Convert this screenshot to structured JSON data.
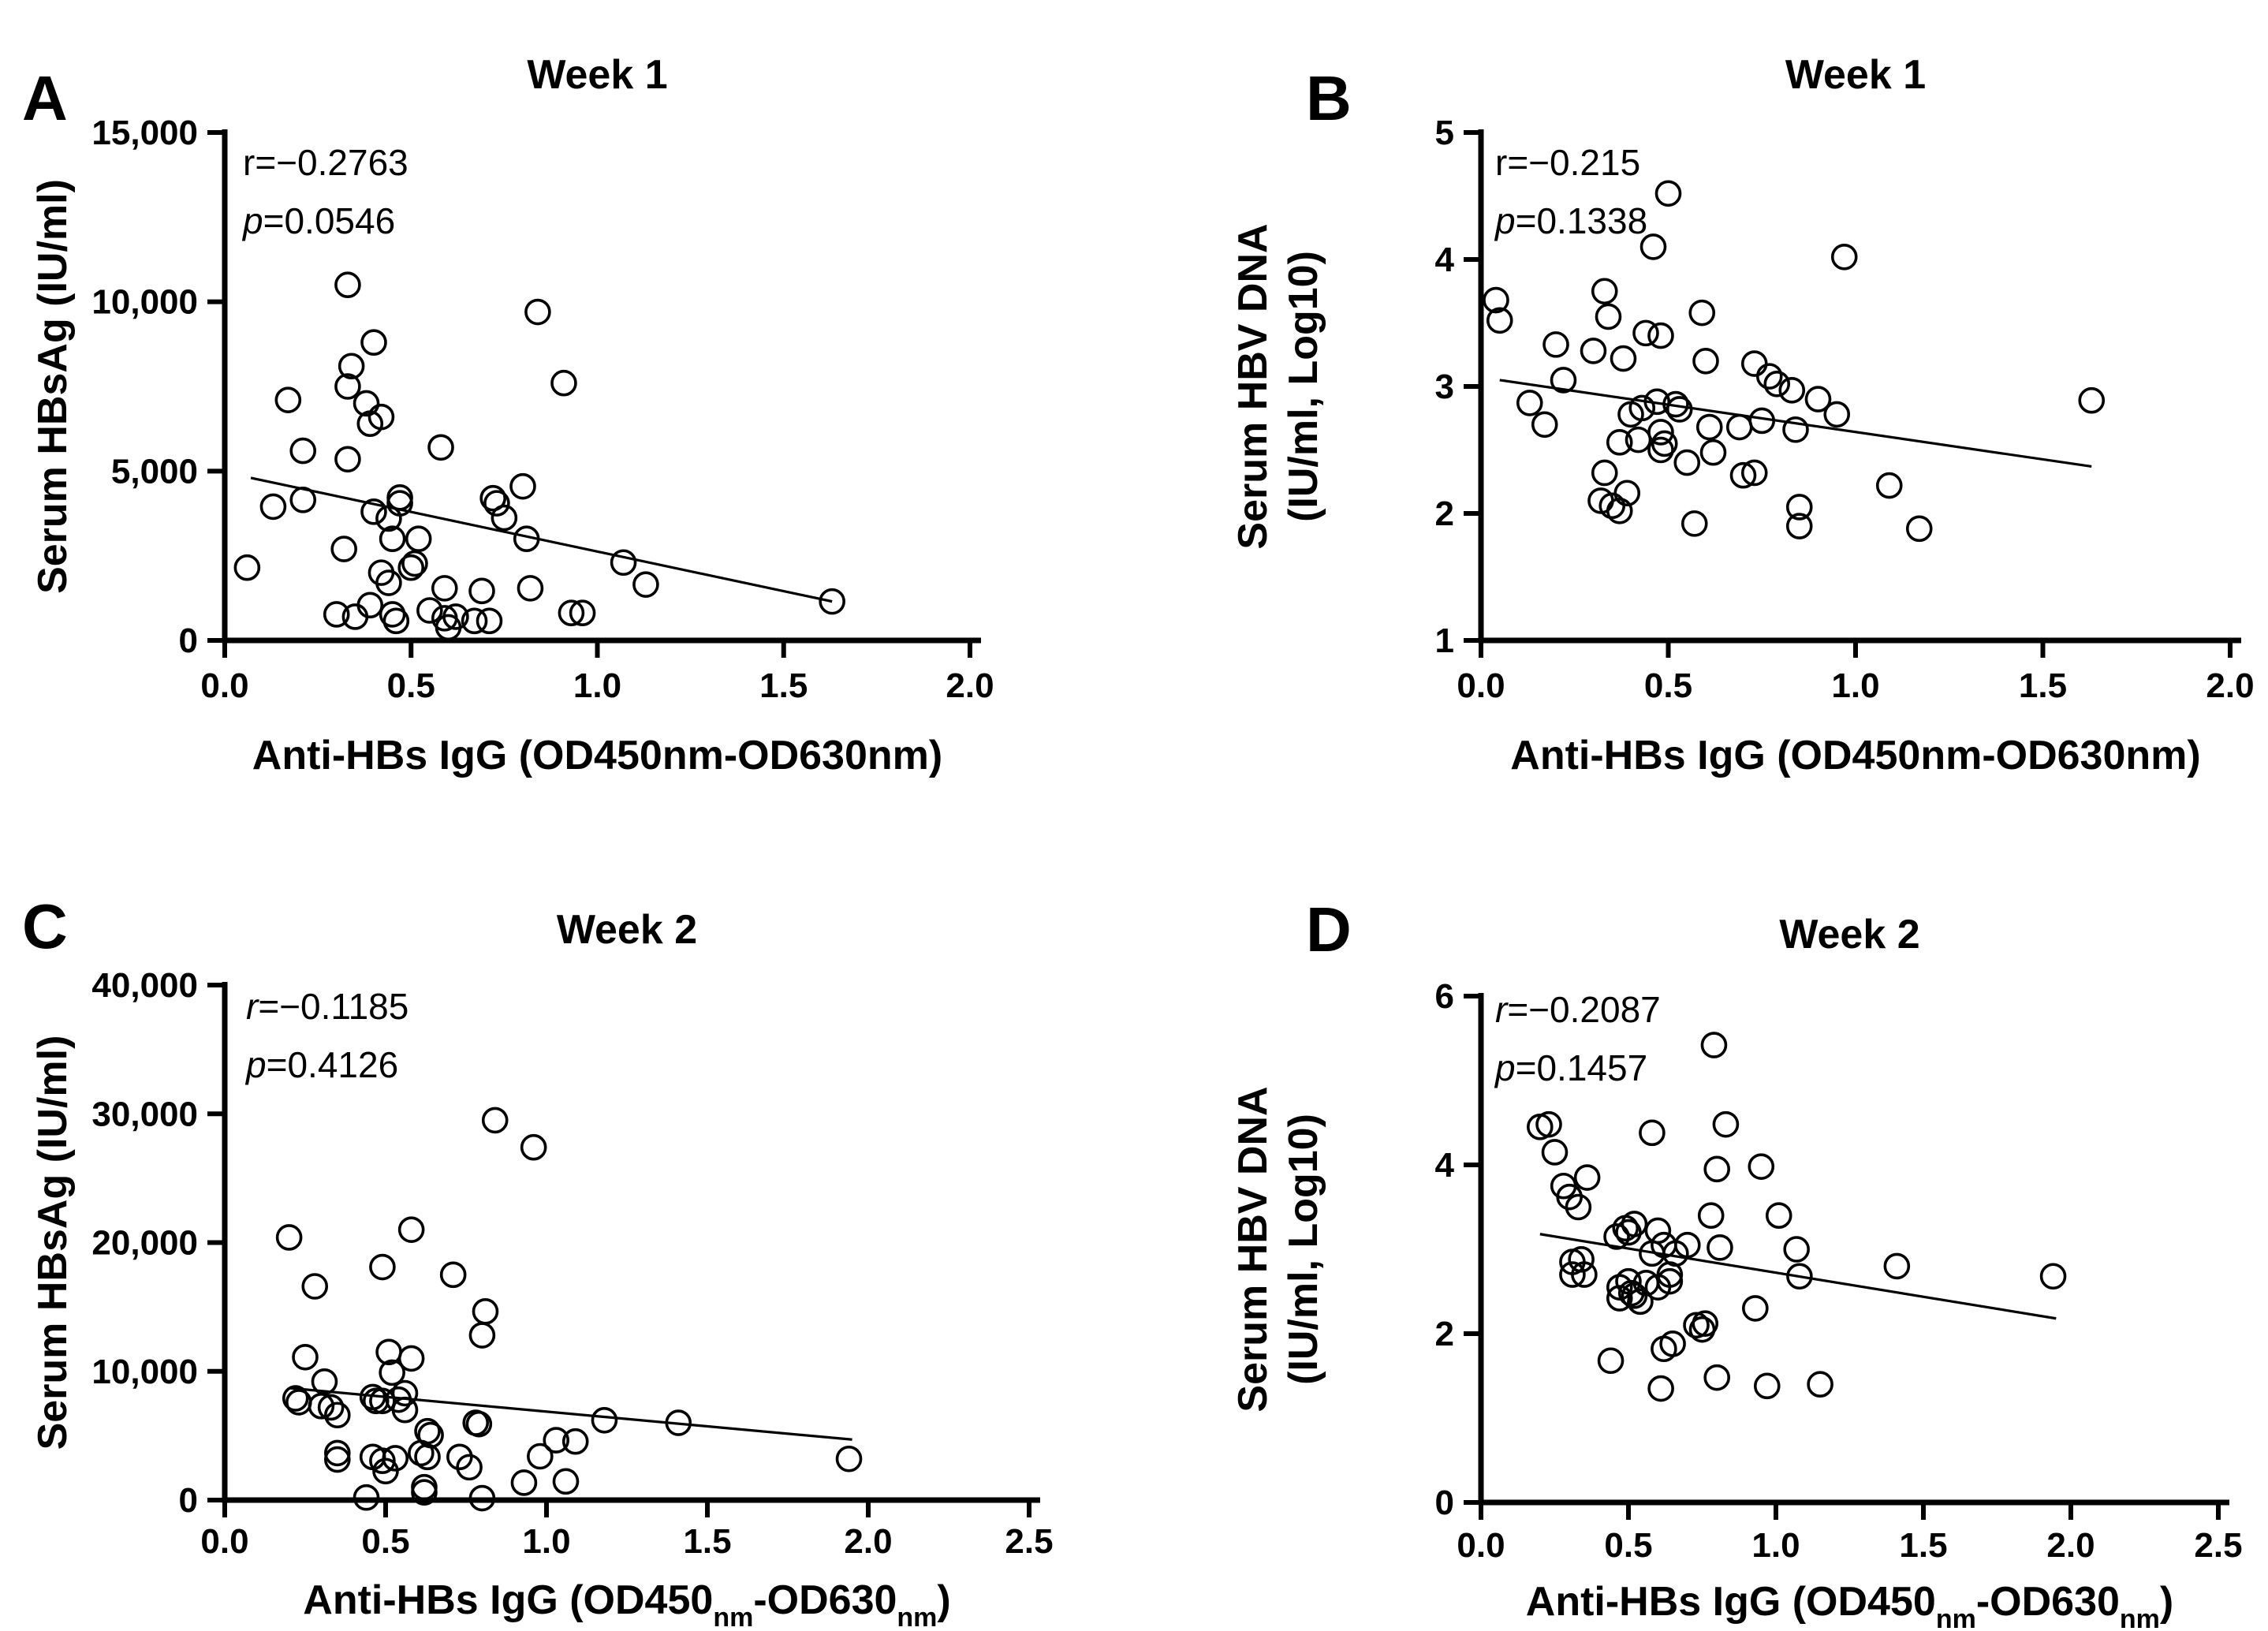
{
  "figure": {
    "background": "#ffffff",
    "ink_color": "#000000",
    "marker": "open-circle",
    "panels_order": [
      "A",
      "B",
      "C",
      "D"
    ]
  },
  "chart_data": [
    {
      "type": "scatter",
      "panel_letter": "A",
      "title": "Week 1",
      "xlabel_parts": [
        {
          "t": "Anti-HBs IgG (OD450nm-OD630nm)"
        }
      ],
      "ylabel_lines": [
        "Serum HBsAg (IU/ml)"
      ],
      "annotation": {
        "r_symbol": "r",
        "r_value": "=−0.2763",
        "r_italic": false,
        "p_symbol": "p",
        "p_value": "=0.0546"
      },
      "xlim": [
        0,
        2.0
      ],
      "ylim": [
        0,
        15000
      ],
      "grid": false,
      "legend": null,
      "xticks": [
        {
          "v": 0,
          "label": "0.0"
        },
        {
          "v": 0.5,
          "label": "0.5"
        },
        {
          "v": 1.0,
          "label": "1.0"
        },
        {
          "v": 1.5,
          "label": "1.5"
        },
        {
          "v": 2.0,
          "label": "2.0"
        }
      ],
      "yticks": [
        {
          "v": 0,
          "label": "0"
        },
        {
          "v": 5000,
          "label": "5,000"
        },
        {
          "v": 10000,
          "label": "10,000"
        },
        {
          "v": 15000,
          "label": "15,000"
        }
      ],
      "trend": {
        "x": [
          0.07,
          1.63
        ],
        "y": [
          4800,
          1150
        ]
      },
      "points": [
        [
          0.06,
          2150
        ],
        [
          0.13,
          3950
        ],
        [
          0.17,
          7100
        ],
        [
          0.21,
          5600
        ],
        [
          0.21,
          4150
        ],
        [
          0.3,
          770
        ],
        [
          0.32,
          2700
        ],
        [
          0.33,
          10500
        ],
        [
          0.33,
          7500
        ],
        [
          0.33,
          5350
        ],
        [
          0.34,
          8100
        ],
        [
          0.35,
          700
        ],
        [
          0.38,
          7000
        ],
        [
          0.39,
          6400
        ],
        [
          0.39,
          1040
        ],
        [
          0.4,
          8800
        ],
        [
          0.4,
          3800
        ],
        [
          0.42,
          6600
        ],
        [
          0.42,
          2000
        ],
        [
          0.44,
          3600
        ],
        [
          0.44,
          1700
        ],
        [
          0.45,
          3000
        ],
        [
          0.45,
          770
        ],
        [
          0.46,
          575
        ],
        [
          0.47,
          4050
        ],
        [
          0.47,
          4220
        ],
        [
          0.5,
          2150
        ],
        [
          0.51,
          2270
        ],
        [
          0.52,
          3000
        ],
        [
          0.55,
          885
        ],
        [
          0.58,
          5700
        ],
        [
          0.59,
          1540
        ],
        [
          0.59,
          655
        ],
        [
          0.6,
          385
        ],
        [
          0.62,
          700
        ],
        [
          0.67,
          575
        ],
        [
          0.69,
          1460
        ],
        [
          0.71,
          575
        ],
        [
          0.72,
          4200
        ],
        [
          0.73,
          4050
        ],
        [
          0.75,
          3620
        ],
        [
          0.8,
          4550
        ],
        [
          0.81,
          3000
        ],
        [
          0.82,
          1540
        ],
        [
          0.84,
          9700
        ],
        [
          0.91,
          7600
        ],
        [
          0.93,
          810
        ],
        [
          0.96,
          810
        ],
        [
          1.07,
          2300
        ],
        [
          1.13,
          1650
        ],
        [
          1.63,
          1150
        ]
      ]
    },
    {
      "type": "scatter",
      "panel_letter": "B",
      "title": "Week 1",
      "xlabel_parts": [
        {
          "t": "Anti-HBs IgG (OD450nm-OD630nm)"
        }
      ],
      "ylabel_lines": [
        "Serum HBV DNA",
        "(IU/ml, Log10)"
      ],
      "annotation": {
        "r_symbol": "r",
        "r_value": "=−0.215",
        "r_italic": false,
        "p_symbol": "p",
        "p_value": "=0.1338"
      },
      "xlim": [
        0,
        2.0
      ],
      "ylim": [
        1,
        5
      ],
      "grid": false,
      "legend": null,
      "xticks": [
        {
          "v": 0,
          "label": "0.0"
        },
        {
          "v": 0.5,
          "label": "0.5"
        },
        {
          "v": 1.0,
          "label": "1.0"
        },
        {
          "v": 1.5,
          "label": "1.5"
        },
        {
          "v": 2.0,
          "label": "2.0"
        }
      ],
      "yticks": [
        {
          "v": 1,
          "label": "1"
        },
        {
          "v": 2,
          "label": "2"
        },
        {
          "v": 3,
          "label": "3"
        },
        {
          "v": 4,
          "label": "4"
        },
        {
          "v": 5,
          "label": "5"
        }
      ],
      "trend": {
        "x": [
          0.05,
          1.63
        ],
        "y": [
          3.05,
          2.37
        ]
      },
      "points": [
        [
          0.04,
          3.68
        ],
        [
          0.05,
          3.52
        ],
        [
          0.13,
          2.87
        ],
        [
          0.17,
          2.7
        ],
        [
          0.2,
          3.33
        ],
        [
          0.22,
          3.05
        ],
        [
          0.3,
          3.28
        ],
        [
          0.32,
          2.1
        ],
        [
          0.33,
          3.75
        ],
        [
          0.33,
          2.32
        ],
        [
          0.34,
          3.55
        ],
        [
          0.35,
          2.06
        ],
        [
          0.37,
          2.56
        ],
        [
          0.37,
          2.02
        ],
        [
          0.38,
          3.22
        ],
        [
          0.39,
          2.16
        ],
        [
          0.4,
          2.78
        ],
        [
          0.42,
          2.58
        ],
        [
          0.43,
          2.83
        ],
        [
          0.44,
          3.42
        ],
        [
          0.46,
          4.1
        ],
        [
          0.47,
          2.88
        ],
        [
          0.48,
          3.4
        ],
        [
          0.48,
          2.64
        ],
        [
          0.48,
          2.5
        ],
        [
          0.49,
          2.55
        ],
        [
          0.5,
          4.52
        ],
        [
          0.52,
          2.86
        ],
        [
          0.53,
          2.82
        ],
        [
          0.55,
          2.4
        ],
        [
          0.57,
          1.92
        ],
        [
          0.59,
          3.58
        ],
        [
          0.6,
          3.2
        ],
        [
          0.61,
          2.68
        ],
        [
          0.62,
          2.48
        ],
        [
          0.69,
          2.68
        ],
        [
          0.7,
          2.3
        ],
        [
          0.73,
          2.32
        ],
        [
          0.73,
          3.18
        ],
        [
          0.75,
          2.73
        ],
        [
          0.77,
          3.08
        ],
        [
          0.79,
          3.02
        ],
        [
          0.83,
          2.97
        ],
        [
          0.84,
          2.66
        ],
        [
          0.85,
          2.05
        ],
        [
          0.85,
          1.9
        ],
        [
          0.9,
          2.9
        ],
        [
          0.95,
          2.78
        ],
        [
          0.97,
          4.02
        ],
        [
          1.09,
          2.22
        ],
        [
          1.17,
          1.88
        ],
        [
          1.63,
          2.89
        ]
      ]
    },
    {
      "type": "scatter",
      "panel_letter": "C",
      "title": "Week 2",
      "xlabel_parts": [
        {
          "t": "Anti-HBs IgG (OD450"
        },
        {
          "t": "nm",
          "sub": true
        },
        {
          "t": "-OD630"
        },
        {
          "t": "nm",
          "sub": true
        },
        {
          "t": ")"
        }
      ],
      "ylabel_lines": [
        "Serum HBsAg (IU/ml)"
      ],
      "annotation": {
        "r_symbol": "r",
        "r_value": "=−0.1185",
        "r_italic": true,
        "p_symbol": "p",
        "p_value": "=0.4126"
      },
      "xlim": [
        0,
        2.5
      ],
      "ylim": [
        0,
        40000
      ],
      "grid": false,
      "legend": null,
      "xticks": [
        {
          "v": 0,
          "label": "0.0"
        },
        {
          "v": 0.5,
          "label": "0.5"
        },
        {
          "v": 1.0,
          "label": "1.0"
        },
        {
          "v": 1.5,
          "label": "1.5"
        },
        {
          "v": 2.0,
          "label": "2.0"
        },
        {
          "v": 2.5,
          "label": "2.5"
        }
      ],
      "yticks": [
        {
          "v": 0,
          "label": "0"
        },
        {
          "v": 10000,
          "label": "10,000"
        },
        {
          "v": 20000,
          "label": "20,000"
        },
        {
          "v": 30000,
          "label": "30,000"
        },
        {
          "v": 40000,
          "label": "40,000"
        }
      ],
      "trend": {
        "x": [
          0.2,
          1.95
        ],
        "y": [
          8700,
          4700
        ]
      },
      "points": [
        [
          0.2,
          20400
        ],
        [
          0.22,
          7900
        ],
        [
          0.23,
          7600
        ],
        [
          0.25,
          11100
        ],
        [
          0.28,
          16600
        ],
        [
          0.3,
          7300
        ],
        [
          0.31,
          9200
        ],
        [
          0.33,
          7200
        ],
        [
          0.35,
          6600
        ],
        [
          0.35,
          3650
        ],
        [
          0.35,
          3150
        ],
        [
          0.44,
          200
        ],
        [
          0.46,
          8000
        ],
        [
          0.46,
          3350
        ],
        [
          0.47,
          7700
        ],
        [
          0.49,
          18100
        ],
        [
          0.49,
          7700
        ],
        [
          0.49,
          3050
        ],
        [
          0.5,
          2250
        ],
        [
          0.51,
          11500
        ],
        [
          0.52,
          9900
        ],
        [
          0.53,
          3250
        ],
        [
          0.54,
          7800
        ],
        [
          0.56,
          8300
        ],
        [
          0.56,
          7000
        ],
        [
          0.58,
          21000
        ],
        [
          0.58,
          11000
        ],
        [
          0.61,
          3650
        ],
        [
          0.62,
          1000
        ],
        [
          0.62,
          600
        ],
        [
          0.63,
          5350
        ],
        [
          0.63,
          3350
        ],
        [
          0.64,
          5050
        ],
        [
          0.71,
          17500
        ],
        [
          0.73,
          3350
        ],
        [
          0.76,
          2550
        ],
        [
          0.78,
          6000
        ],
        [
          0.79,
          5900
        ],
        [
          0.8,
          12800
        ],
        [
          0.8,
          150
        ],
        [
          0.81,
          14650
        ],
        [
          0.84,
          29500
        ],
        [
          0.93,
          1350
        ],
        [
          0.96,
          27400
        ],
        [
          0.98,
          3400
        ],
        [
          1.03,
          4650
        ],
        [
          1.06,
          1450
        ],
        [
          1.09,
          4550
        ],
        [
          1.18,
          6200
        ],
        [
          1.41,
          6000
        ],
        [
          1.94,
          3200
        ]
      ]
    },
    {
      "type": "scatter",
      "panel_letter": "D",
      "title": "Week 2",
      "xlabel_parts": [
        {
          "t": "Anti-HBs IgG (OD450"
        },
        {
          "t": "nm",
          "sub": true
        },
        {
          "t": "-OD630"
        },
        {
          "t": "nm",
          "sub": true
        },
        {
          "t": ")"
        }
      ],
      "ylabel_lines": [
        "Serum HBV DNA",
        "(IU/ml, Log10)"
      ],
      "annotation": {
        "r_symbol": "r",
        "r_value": "=−0.2087",
        "r_italic": true,
        "p_symbol": "p",
        "p_value": "=0.1457"
      },
      "xlim": [
        0,
        2.5
      ],
      "ylim": [
        0,
        6
      ],
      "grid": false,
      "legend": null,
      "xticks": [
        {
          "v": 0,
          "label": "0.0"
        },
        {
          "v": 0.5,
          "label": "0.5"
        },
        {
          "v": 1.0,
          "label": "1.0"
        },
        {
          "v": 1.5,
          "label": "1.5"
        },
        {
          "v": 2.0,
          "label": "2.0"
        },
        {
          "v": 2.5,
          "label": "2.5"
        }
      ],
      "yticks": [
        {
          "v": 0,
          "label": "0"
        },
        {
          "v": 2,
          "label": "2"
        },
        {
          "v": 4,
          "label": "4"
        },
        {
          "v": 6,
          "label": "6"
        }
      ],
      "trend": {
        "x": [
          0.2,
          1.95
        ],
        "y": [
          3.18,
          2.18
        ]
      },
      "points": [
        [
          0.2,
          4.45
        ],
        [
          0.23,
          4.48
        ],
        [
          0.25,
          4.15
        ],
        [
          0.28,
          3.75
        ],
        [
          0.3,
          3.62
        ],
        [
          0.31,
          2.85
        ],
        [
          0.31,
          2.7
        ],
        [
          0.33,
          3.5
        ],
        [
          0.34,
          2.88
        ],
        [
          0.35,
          2.7
        ],
        [
          0.36,
          3.85
        ],
        [
          0.44,
          1.68
        ],
        [
          0.46,
          3.15
        ],
        [
          0.47,
          2.55
        ],
        [
          0.47,
          2.42
        ],
        [
          0.49,
          3.25
        ],
        [
          0.5,
          3.2
        ],
        [
          0.5,
          2.62
        ],
        [
          0.51,
          2.48
        ],
        [
          0.52,
          3.3
        ],
        [
          0.52,
          2.45
        ],
        [
          0.54,
          2.38
        ],
        [
          0.56,
          2.6
        ],
        [
          0.58,
          4.38
        ],
        [
          0.58,
          2.95
        ],
        [
          0.6,
          3.22
        ],
        [
          0.6,
          2.55
        ],
        [
          0.61,
          1.35
        ],
        [
          0.62,
          3.05
        ],
        [
          0.62,
          1.82
        ],
        [
          0.64,
          2.7
        ],
        [
          0.64,
          2.62
        ],
        [
          0.65,
          1.88
        ],
        [
          0.66,
          2.95
        ],
        [
          0.7,
          3.05
        ],
        [
          0.73,
          2.1
        ],
        [
          0.75,
          2.05
        ],
        [
          0.76,
          2.12
        ],
        [
          0.78,
          3.4
        ],
        [
          0.79,
          5.42
        ],
        [
          0.8,
          3.95
        ],
        [
          0.8,
          1.48
        ],
        [
          0.81,
          3.02
        ],
        [
          0.83,
          4.48
        ],
        [
          0.93,
          2.3
        ],
        [
          0.95,
          3.98
        ],
        [
          0.97,
          1.38
        ],
        [
          1.01,
          3.4
        ],
        [
          1.07,
          3.0
        ],
        [
          1.08,
          2.68
        ],
        [
          1.15,
          1.4
        ],
        [
          1.41,
          2.8
        ],
        [
          1.94,
          2.68
        ]
      ]
    }
  ]
}
